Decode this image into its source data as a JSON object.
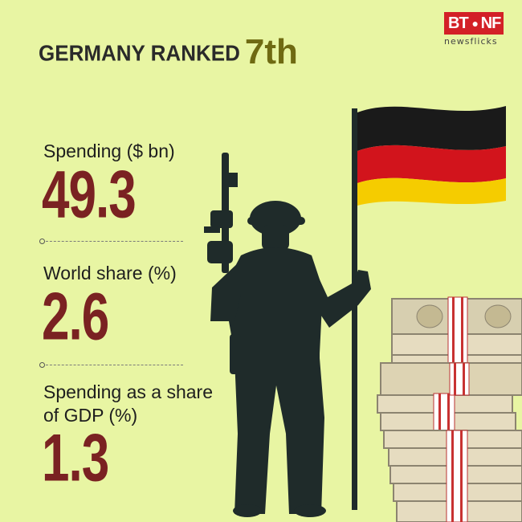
{
  "brand": {
    "mark_left": "BT",
    "mark_right": "NF",
    "sub": "newsflicks",
    "color": "#d32027"
  },
  "title": {
    "main": "GERMANY RANKED",
    "rank": "7th"
  },
  "stats": [
    {
      "label": "Spending ($ bn)",
      "value": "49.3"
    },
    {
      "label": "World share (%)",
      "value": "2.6"
    },
    {
      "label_line1": "Spending as a share",
      "label_line2": "of GDP (%)",
      "value": "1.3"
    }
  ],
  "colors": {
    "background": "#e8f5a3",
    "value": "#7a2222",
    "rank": "#6f6a12",
    "silhouette": "#1f2b2a"
  },
  "flag": {
    "stripes": [
      "#1a1a1a",
      "#d2141c",
      "#f5cc00"
    ]
  }
}
